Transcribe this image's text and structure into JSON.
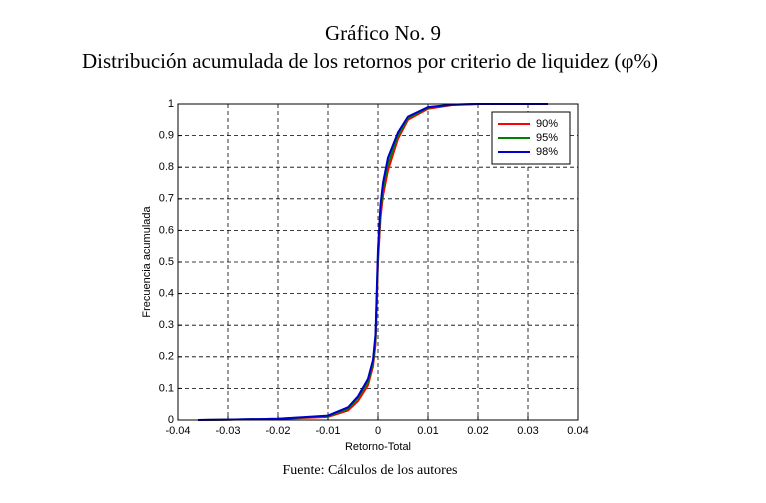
{
  "chart_data": {
    "type": "line",
    "title": "Gráfico No. 9",
    "subtitle": "Distribución acumulada de los retornos por criterio de liquidez (φ%)",
    "x_label": "Retorno-Total",
    "y_label": "Frecuencia acumulada",
    "source": "Fuente: Cálculos de los autores",
    "x": [
      -0.036,
      -0.03,
      -0.02,
      -0.01,
      -0.006,
      -0.004,
      -0.002,
      -0.001,
      -0.0005,
      0,
      0.0005,
      0.001,
      0.002,
      0.004,
      0.006,
      0.01,
      0.015,
      0.02,
      0.03,
      0.034
    ],
    "series": [
      {
        "name": "90%",
        "color": "#ff0000",
        "values": [
          0,
          0.001,
          0.003,
          0.01,
          0.03,
          0.06,
          0.11,
          0.17,
          0.24,
          0.5,
          0.64,
          0.71,
          0.79,
          0.89,
          0.95,
          0.985,
          0.997,
          1,
          1,
          1
        ]
      },
      {
        "name": "95%",
        "color": "#008000",
        "values": [
          0,
          0.001,
          0.004,
          0.012,
          0.035,
          0.07,
          0.12,
          0.18,
          0.25,
          0.52,
          0.66,
          0.73,
          0.81,
          0.9,
          0.955,
          0.988,
          0.998,
          1,
          1,
          1
        ]
      },
      {
        "name": "98%",
        "color": "#0000cc",
        "values": [
          0,
          0.001,
          0.004,
          0.014,
          0.04,
          0.075,
          0.13,
          0.19,
          0.27,
          0.54,
          0.68,
          0.75,
          0.83,
          0.91,
          0.96,
          0.99,
          0.998,
          1,
          1,
          1
        ]
      }
    ],
    "xlim": [
      -0.04,
      0.04
    ],
    "xticks": [
      -0.04,
      -0.03,
      -0.02,
      -0.01,
      0,
      0.01,
      0.02,
      0.03,
      0.04
    ],
    "ylim": [
      0,
      1
    ],
    "yticks": [
      0,
      0.1,
      0.2,
      0.3,
      0.4,
      0.5,
      0.6,
      0.7,
      0.8,
      0.9,
      1
    ],
    "grid": true,
    "legend": "upper right"
  }
}
